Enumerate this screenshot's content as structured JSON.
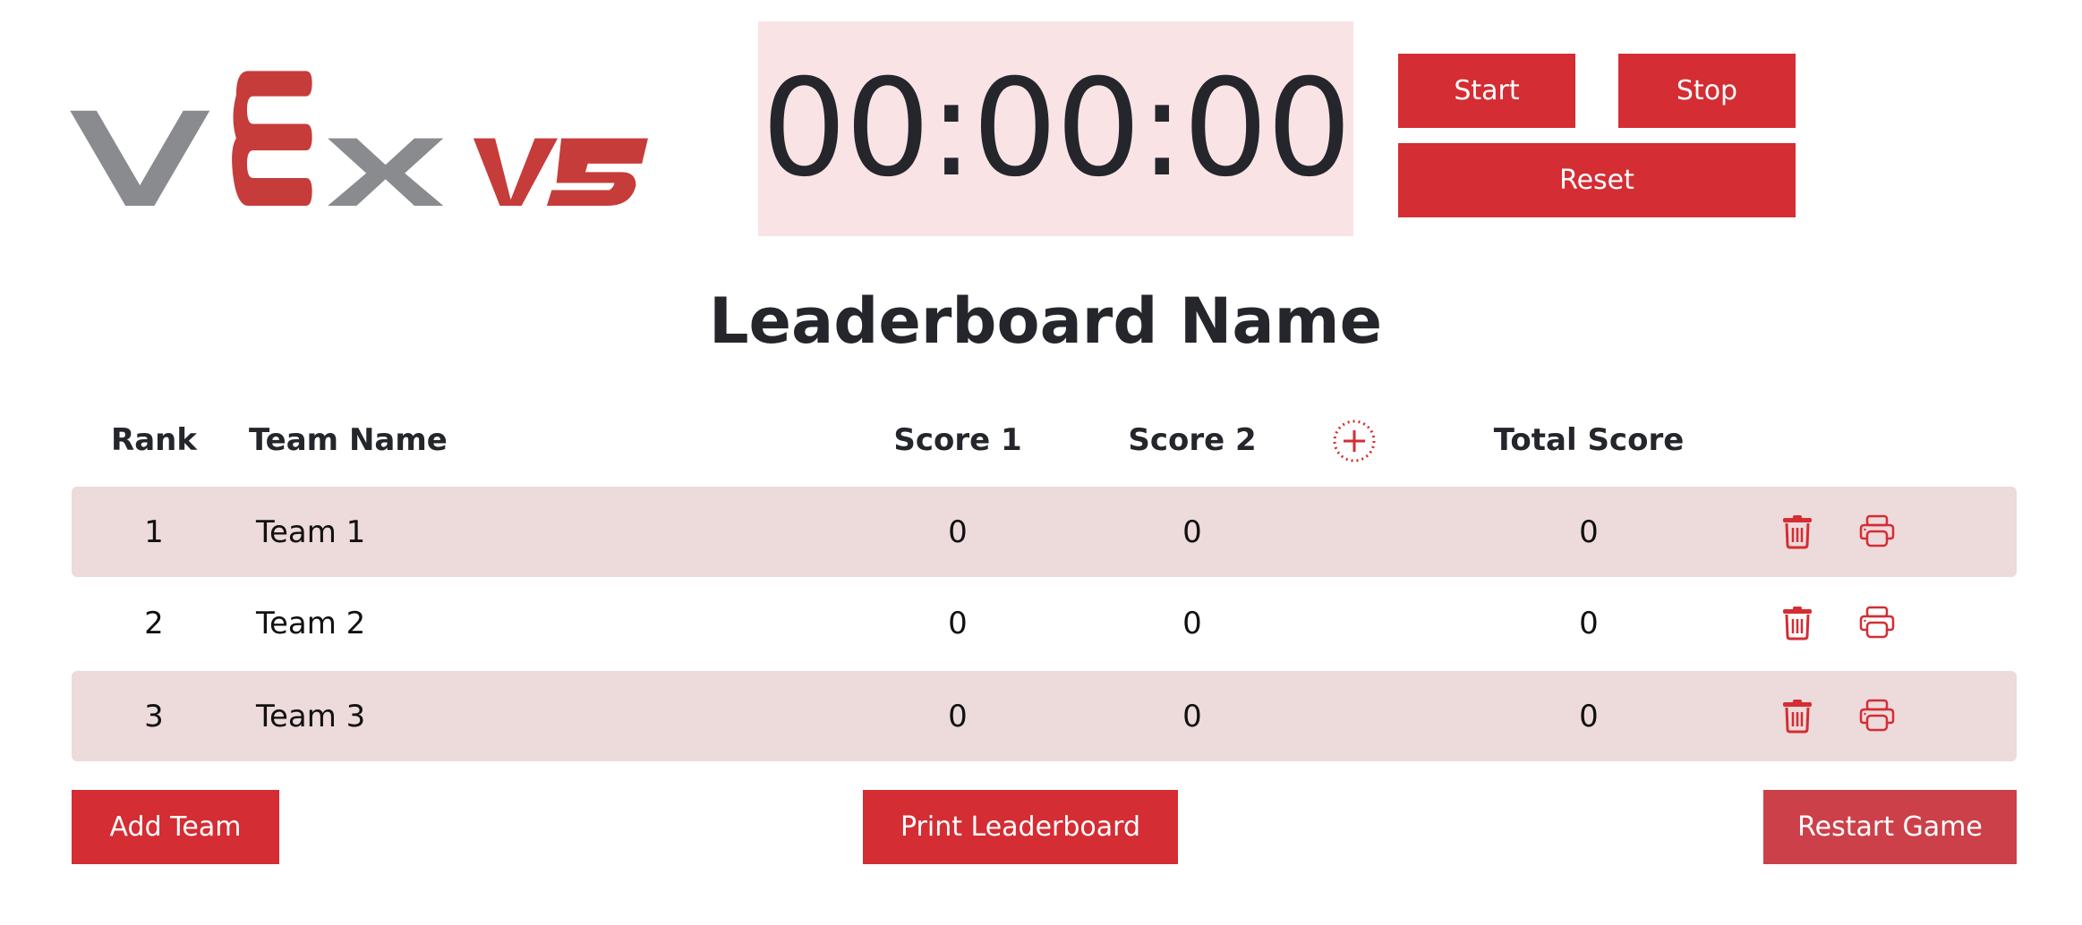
{
  "logo": {
    "text": "VEX V5",
    "colors": {
      "grey": "#8a8b8f",
      "red": "#c63c3a"
    }
  },
  "timer": {
    "value": "00:00:00"
  },
  "controls": {
    "start": "Start",
    "stop": "Stop",
    "reset": "Reset"
  },
  "title": "Leaderboard Name",
  "columns": {
    "rank": "Rank",
    "team": "Team Name",
    "score1": "Score 1",
    "score2": "Score 2",
    "total": "Total Score"
  },
  "rows": [
    {
      "rank": "1",
      "team": "Team 1",
      "score1": "0",
      "score2": "0",
      "total": "0"
    },
    {
      "rank": "2",
      "team": "Team 2",
      "score1": "0",
      "score2": "0",
      "total": "0"
    },
    {
      "rank": "3",
      "team": "Team 3",
      "score1": "0",
      "score2": "0",
      "total": "0"
    }
  ],
  "footer": {
    "add": "Add Team",
    "print": "Print Leaderboard",
    "restart": "Restart Game"
  },
  "colors": {
    "accent": "#d42d33",
    "row_alt": "#eddadb",
    "timer_bg": "#f9e3e5",
    "restart": "#cc4049"
  },
  "icons": {
    "add_column": "plus-circle-dotted-icon",
    "delete": "trash-icon",
    "print": "printer-icon"
  }
}
